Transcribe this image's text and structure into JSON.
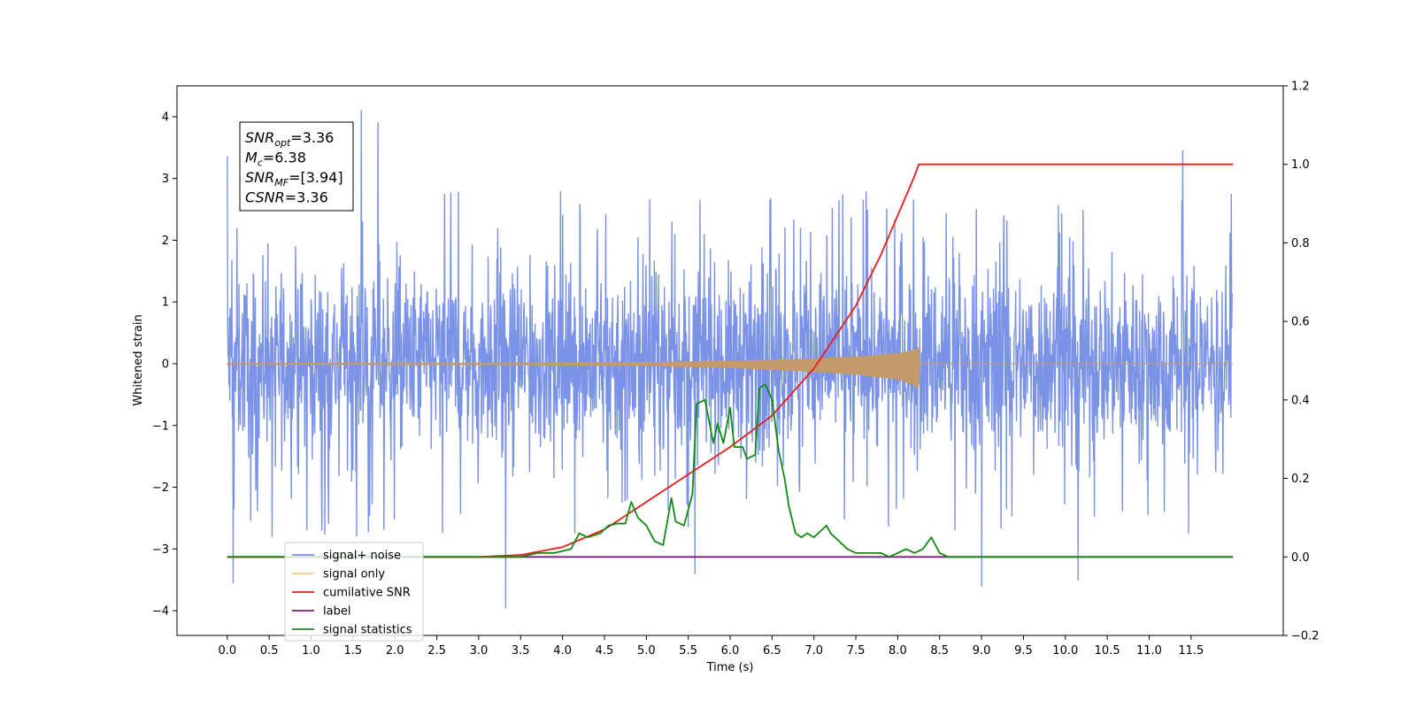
{
  "chart_data": {
    "type": "line",
    "xlabel": "Time (s)",
    "ylabel": "Whitened strain",
    "xlim": [
      -0.6,
      12.6
    ],
    "ylim_left": [
      -4.4,
      4.5
    ],
    "ylim_right": [
      -0.2,
      1.2
    ],
    "x_ticks": [
      "0.0",
      "0.5",
      "1.0",
      "1.5",
      "2.0",
      "2.5",
      "3.0",
      "3.5",
      "4.0",
      "4.5",
      "5.0",
      "5.5",
      "6.0",
      "6.5",
      "7.0",
      "7.5",
      "8.0",
      "8.5",
      "9.0",
      "9.5",
      "10.0",
      "10.5",
      "11.0",
      "11.5"
    ],
    "y_left_ticks": [
      "4",
      "3",
      "2",
      "1",
      "0",
      "−1",
      "−2",
      "−3",
      "−4"
    ],
    "y_right_ticks": [
      "1.2",
      "1.0",
      "0.8",
      "0.6",
      "0.4",
      "0.2",
      "0.0",
      "−0.2"
    ],
    "annotation": {
      "lines": [
        {
          "sym": "SNR",
          "sub": "opt",
          "val": "=3.36"
        },
        {
          "sym": "M",
          "sub": "c",
          "val": "=6.38"
        },
        {
          "sym": "SNR",
          "sub": "MF",
          "val": "=[3.94]"
        },
        {
          "sym": "CSNR",
          "sub": "",
          "val": "=3.36"
        }
      ]
    },
    "legend": {
      "placement": "lower-left",
      "entries": [
        {
          "label": "signal+ noise",
          "color": "#7a93e6"
        },
        {
          "label": "signal only",
          "color": "#ffcc80"
        },
        {
          "label": "cumilative SNR",
          "color": "#ee1c1c"
        },
        {
          "label": "label",
          "color": "#7b1f7e"
        },
        {
          "label": "signal statistics",
          "color": "#138a13"
        }
      ]
    },
    "series": [
      {
        "name": "signal+ noise",
        "axis": "left",
        "color": "#7a93e6",
        "x_range": [
          0.0,
          11.99
        ],
        "typical_range": [
          -2.0,
          2.2
        ],
        "extreme_peaks": [
          [
            0.0,
            3.36
          ],
          [
            0.07,
            -3.55
          ],
          [
            1.6,
            4.1
          ],
          [
            1.8,
            3.9
          ],
          [
            3.32,
            -3.95
          ],
          [
            5.58,
            -3.4
          ],
          [
            9.0,
            -3.6
          ],
          [
            10.15,
            -3.5
          ],
          [
            11.4,
            3.45
          ]
        ]
      },
      {
        "name": "signal only",
        "axis": "left",
        "color": "#c49a6c",
        "x": [
          0.0,
          3.5,
          5.0,
          6.0,
          7.0,
          7.5,
          8.0,
          8.2,
          8.25,
          8.26,
          12.0
        ],
        "amplitude": [
          0.005,
          0.01,
          0.02,
          0.04,
          0.08,
          0.11,
          0.16,
          0.22,
          0.28,
          0.0,
          0.0
        ]
      },
      {
        "name": "cumilative SNR",
        "axis": "right",
        "color": "#ee1c1c",
        "x": [
          0.0,
          3.0,
          3.5,
          4.0,
          4.5,
          5.0,
          5.5,
          6.0,
          6.5,
          7.0,
          7.5,
          7.8,
          8.0,
          8.2,
          8.25,
          12.0
        ],
        "values": [
          0.0,
          0.0,
          0.005,
          0.025,
          0.07,
          0.14,
          0.21,
          0.28,
          0.36,
          0.48,
          0.64,
          0.77,
          0.87,
          0.97,
          1.0,
          1.0
        ]
      },
      {
        "name": "label",
        "axis": "right",
        "color": "#7b1f7e",
        "x": [
          0.0,
          12.0
        ],
        "values": [
          0.0,
          0.0
        ]
      },
      {
        "name": "signal statistics",
        "axis": "right",
        "color": "#138a13",
        "x": [
          0.0,
          3.5,
          3.7,
          3.9,
          4.0,
          4.1,
          4.2,
          4.3,
          4.45,
          4.55,
          4.65,
          4.75,
          4.82,
          4.9,
          5.0,
          5.1,
          5.2,
          5.3,
          5.35,
          5.45,
          5.5,
          5.55,
          5.6,
          5.7,
          5.8,
          5.85,
          5.92,
          6.0,
          6.05,
          6.15,
          6.2,
          6.3,
          6.35,
          6.42,
          6.5,
          6.58,
          6.65,
          6.7,
          6.78,
          6.85,
          6.92,
          7.0,
          7.1,
          7.15,
          7.2,
          7.3,
          7.4,
          7.5,
          7.6,
          7.7,
          7.8,
          7.9,
          8.0,
          8.1,
          8.2,
          8.3,
          8.4,
          8.5,
          8.6,
          8.8,
          9.5,
          10.5,
          12.0
        ],
        "values": [
          0.0,
          0.0,
          0.01,
          0.01,
          0.015,
          0.02,
          0.06,
          0.05,
          0.06,
          0.08,
          0.085,
          0.085,
          0.14,
          0.1,
          0.08,
          0.04,
          0.03,
          0.15,
          0.09,
          0.08,
          0.12,
          0.16,
          0.39,
          0.4,
          0.29,
          0.34,
          0.29,
          0.38,
          0.28,
          0.28,
          0.25,
          0.26,
          0.43,
          0.44,
          0.4,
          0.27,
          0.2,
          0.13,
          0.06,
          0.05,
          0.06,
          0.05,
          0.07,
          0.08,
          0.06,
          0.04,
          0.02,
          0.01,
          0.01,
          0.01,
          0.01,
          0.0,
          0.01,
          0.02,
          0.01,
          0.02,
          0.05,
          0.01,
          0.0,
          0.0,
          0.0,
          0.0,
          0.0
        ]
      }
    ]
  }
}
